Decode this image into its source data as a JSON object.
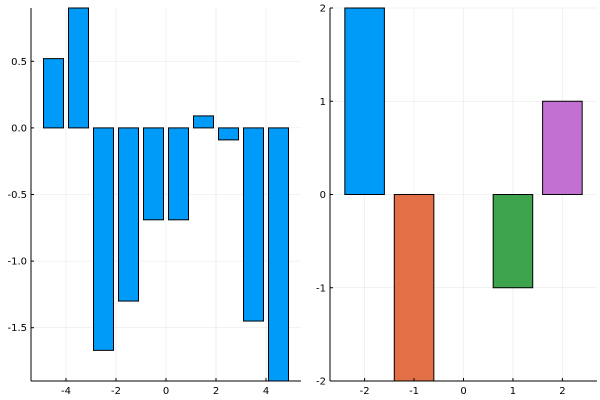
{
  "chart_data": [
    {
      "type": "bar",
      "title": "",
      "xlabel": "",
      "ylabel": "",
      "x": [
        -4.5,
        -3.5,
        -2.5,
        -1.5,
        -0.5,
        0.5,
        1.5,
        2.5,
        3.5,
        4.5
      ],
      "values": [
        0.52,
        0.9,
        -1.67,
        -1.3,
        -0.69,
        -0.69,
        0.09,
        -0.09,
        -1.45,
        -1.9
      ],
      "bar_width": 0.8,
      "xlim": [
        -5.4,
        5.4
      ],
      "ylim": [
        -1.9,
        0.9
      ],
      "xticks": [
        -4,
        -2,
        0,
        2,
        4
      ],
      "xtick_labels": [
        "-4",
        "-2",
        "0",
        "2",
        "4"
      ],
      "yticks": [
        -1.5,
        -1.0,
        -0.5,
        0.0,
        0.5
      ],
      "ytick_labels": [
        "-1.5",
        "-1.0",
        "-0.5",
        "0.0",
        "0.5"
      ],
      "colors": [
        "#009af9"
      ],
      "grid": true,
      "legend": "none"
    },
    {
      "type": "bar",
      "title": "",
      "xlabel": "",
      "ylabel": "",
      "x": [
        -2,
        -1,
        0,
        1,
        2
      ],
      "values": [
        2,
        -2,
        0,
        -1,
        1
      ],
      "bar_width": 0.8,
      "xlim": [
        -2.7,
        2.7
      ],
      "ylim": [
        -2,
        2
      ],
      "xticks": [
        -2,
        -1,
        0,
        1,
        2
      ],
      "xtick_labels": [
        "-2",
        "-1",
        "0",
        "1",
        "2"
      ],
      "yticks": [
        -2,
        -1,
        0,
        1,
        2
      ],
      "ytick_labels": [
        "-2",
        "-1",
        "0",
        "1",
        "2"
      ],
      "colors": [
        "#009af9",
        "#e26f46",
        "#3da44d",
        "#3da44d",
        "#c271d2"
      ],
      "grid": true,
      "legend": "none"
    }
  ]
}
